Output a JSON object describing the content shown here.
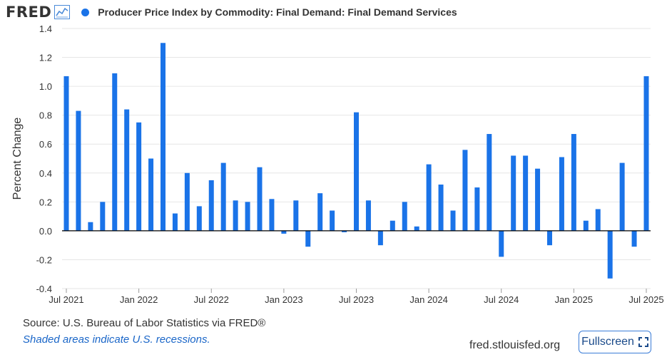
{
  "header": {
    "logo_text": "FRED",
    "series_title": "Producer Price Index by Commodity: Final Demand: Final Demand Services"
  },
  "colors": {
    "bar": "#1a73e8",
    "grid": "#e6e6e6",
    "zero": "#000000",
    "plot_bg": "#ffffff"
  },
  "chart_data": {
    "type": "bar",
    "ylabel": "Percent Change",
    "ylim": [
      -0.4,
      1.4
    ],
    "yticks": [
      -0.4,
      -0.2,
      0.0,
      0.2,
      0.4,
      0.6,
      0.8,
      1.0,
      1.2,
      1.4
    ],
    "ytick_labels": [
      "-0.4",
      "-0.2",
      "0.0",
      "0.2",
      "0.4",
      "0.6",
      "0.8",
      "1.0",
      "1.2",
      "1.4"
    ],
    "xtick_labels": [
      {
        "month": "2021-07",
        "label": "Jul 2021"
      },
      {
        "month": "2022-01",
        "label": "Jan 2022"
      },
      {
        "month": "2022-07",
        "label": "Jul 2022"
      },
      {
        "month": "2023-01",
        "label": "Jan 2023"
      },
      {
        "month": "2023-07",
        "label": "Jul 2023"
      },
      {
        "month": "2024-01",
        "label": "Jan 2024"
      },
      {
        "month": "2024-07",
        "label": "Jul 2024"
      },
      {
        "month": "2025-01",
        "label": "Jan 2025"
      },
      {
        "month": "2025-07",
        "label": "Jul 2025"
      }
    ],
    "grid": true,
    "series": [
      {
        "values": [
          {
            "month": "2021-07",
            "value": 1.07
          },
          {
            "month": "2021-08",
            "value": 0.83
          },
          {
            "month": "2021-09",
            "value": 0.06
          },
          {
            "month": "2021-10",
            "value": 0.2
          },
          {
            "month": "2021-11",
            "value": 1.09
          },
          {
            "month": "2021-12",
            "value": 0.84
          },
          {
            "month": "2022-01",
            "value": 0.75
          },
          {
            "month": "2022-02",
            "value": 0.5
          },
          {
            "month": "2022-03",
            "value": 1.3
          },
          {
            "month": "2022-04",
            "value": 0.12
          },
          {
            "month": "2022-05",
            "value": 0.4
          },
          {
            "month": "2022-06",
            "value": 0.17
          },
          {
            "month": "2022-07",
            "value": 0.35
          },
          {
            "month": "2022-08",
            "value": 0.47
          },
          {
            "month": "2022-09",
            "value": 0.21
          },
          {
            "month": "2022-10",
            "value": 0.2
          },
          {
            "month": "2022-11",
            "value": 0.44
          },
          {
            "month": "2022-12",
            "value": 0.22
          },
          {
            "month": "2023-01",
            "value": -0.02
          },
          {
            "month": "2023-02",
            "value": 0.21
          },
          {
            "month": "2023-03",
            "value": -0.11
          },
          {
            "month": "2023-04",
            "value": 0.26
          },
          {
            "month": "2023-05",
            "value": 0.14
          },
          {
            "month": "2023-06",
            "value": -0.01
          },
          {
            "month": "2023-07",
            "value": 0.82
          },
          {
            "month": "2023-08",
            "value": 0.21
          },
          {
            "month": "2023-09",
            "value": -0.1
          },
          {
            "month": "2023-10",
            "value": 0.07
          },
          {
            "month": "2023-11",
            "value": 0.2
          },
          {
            "month": "2023-12",
            "value": 0.03
          },
          {
            "month": "2024-01",
            "value": 0.46
          },
          {
            "month": "2024-02",
            "value": 0.32
          },
          {
            "month": "2024-03",
            "value": 0.14
          },
          {
            "month": "2024-04",
            "value": 0.56
          },
          {
            "month": "2024-05",
            "value": 0.3
          },
          {
            "month": "2024-06",
            "value": 0.67
          },
          {
            "month": "2024-07",
            "value": -0.18
          },
          {
            "month": "2024-08",
            "value": 0.52
          },
          {
            "month": "2024-09",
            "value": 0.52
          },
          {
            "month": "2024-10",
            "value": 0.43
          },
          {
            "month": "2024-11",
            "value": -0.1
          },
          {
            "month": "2024-12",
            "value": 0.51
          },
          {
            "month": "2025-01",
            "value": 0.67
          },
          {
            "month": "2025-02",
            "value": 0.07
          },
          {
            "month": "2025-03",
            "value": 0.15
          },
          {
            "month": "2025-04",
            "value": -0.33
          },
          {
            "month": "2025-05",
            "value": 0.47
          },
          {
            "month": "2025-06",
            "value": -0.11
          },
          {
            "month": "2025-07",
            "value": 1.07
          }
        ]
      }
    ]
  },
  "footer": {
    "source": "Source: U.S. Bureau of Labor Statistics via FRED®",
    "recession_note": "Shaded areas indicate U.S. recessions.",
    "url": "fred.stlouisfed.org",
    "fullscreen_label": "Fullscreen"
  }
}
